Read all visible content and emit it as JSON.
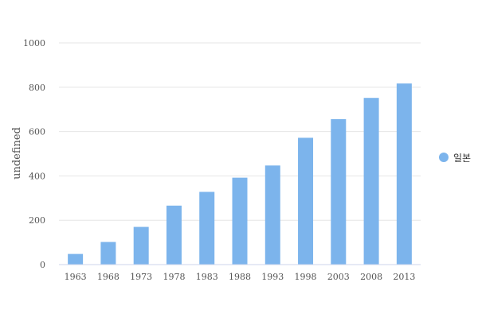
{
  "chart_data": {
    "type": "bar",
    "categories": [
      "1963",
      "1968",
      "1973",
      "1978",
      "1983",
      "1988",
      "1993",
      "1998",
      "2003",
      "2008",
      "2013"
    ],
    "series": [
      {
        "name": "일본",
        "values": [
          48,
          102,
          170,
          266,
          328,
          392,
          447,
          572,
          656,
          752,
          817
        ]
      }
    ],
    "title": "",
    "xlabel": "",
    "ylabel": "undefined",
    "ylim": [
      0,
      1000
    ],
    "yticks": [
      "0",
      "200",
      "400",
      "600",
      "800",
      "1000"
    ],
    "grid": true,
    "legend_position": "right",
    "colors": {
      "bar": "#7cb4ec",
      "grid": "#e6e6e6",
      "axis": "#ccd6eb"
    }
  }
}
